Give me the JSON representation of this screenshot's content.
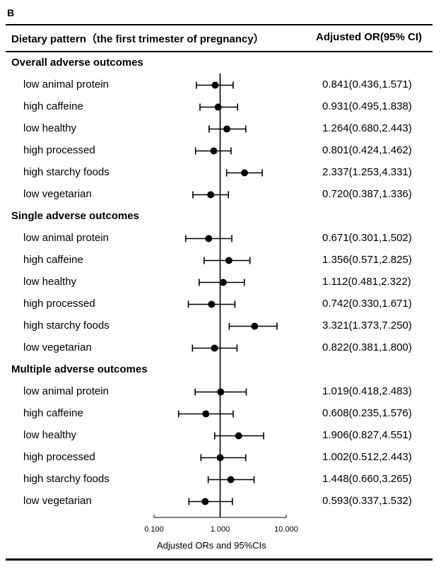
{
  "panel_label": "B",
  "header": {
    "left": "Dietary pattern（the first trimester of pregnancy）",
    "right": "Adjusted OR(95% CI)"
  },
  "chart_data": {
    "type": "forest",
    "x_scale": "log10",
    "xlim": [
      0.1,
      10
    ],
    "x_ticks": [
      0.1,
      1,
      10
    ],
    "x_tick_labels": [
      "0.100",
      "1.000",
      "10.000"
    ],
    "xlabel": "Adjusted ORs and 95%CIs",
    "reference_line": 1,
    "groups": [
      {
        "name": "Overall adverse outcomes",
        "rows": [
          {
            "label": "low animal protein",
            "or": 0.841,
            "lo": 0.436,
            "hi": 1.571,
            "text": "0.841(0.436,1.571)"
          },
          {
            "label": "high caffeine",
            "or": 0.931,
            "lo": 0.495,
            "hi": 1.838,
            "text": "0.931(0.495,1.838)"
          },
          {
            "label": "low healthy",
            "or": 1.264,
            "lo": 0.68,
            "hi": 2.443,
            "text": "1.264(0.680,2.443)"
          },
          {
            "label": "high processed",
            "or": 0.801,
            "lo": 0.424,
            "hi": 1.462,
            "text": "0.801(0.424,1.462)"
          },
          {
            "label": "high starchy foods",
            "or": 2.337,
            "lo": 1.253,
            "hi": 4.331,
            "text": "2.337(1.253,4.331)"
          },
          {
            "label": "low vegetarian",
            "or": 0.72,
            "lo": 0.387,
            "hi": 1.336,
            "text": "0.720(0.387,1.336)"
          }
        ]
      },
      {
        "name": "Single adverse outcomes",
        "rows": [
          {
            "label": "low animal protein",
            "or": 0.671,
            "lo": 0.301,
            "hi": 1.502,
            "text": "0.671(0.301,1.502)"
          },
          {
            "label": "high caffeine",
            "or": 1.356,
            "lo": 0.571,
            "hi": 2.825,
            "text": "1.356(0.571,2.825)"
          },
          {
            "label": "low healthy",
            "or": 1.112,
            "lo": 0.481,
            "hi": 2.322,
            "text": "1.112(0.481,2.322)"
          },
          {
            "label": "high processed",
            "or": 0.742,
            "lo": 0.33,
            "hi": 1.671,
            "text": "0.742(0.330,1.671)"
          },
          {
            "label": "high starchy foods",
            "or": 3.321,
            "lo": 1.373,
            "hi": 7.25,
            "text": "3.321(1.373,7.250)"
          },
          {
            "label": "low vegetarian",
            "or": 0.822,
            "lo": 0.381,
            "hi": 1.8,
            "text": "0.822(0.381,1.800)"
          }
        ]
      },
      {
        "name": "Multiple adverse outcomes",
        "rows": [
          {
            "label": "low animal protein",
            "or": 1.019,
            "lo": 0.418,
            "hi": 2.483,
            "text": "1.019(0.418,2.483)"
          },
          {
            "label": "high caffeine",
            "or": 0.608,
            "lo": 0.235,
            "hi": 1.576,
            "text": "0.608(0.235,1.576)"
          },
          {
            "label": "low healthy",
            "or": 1.906,
            "lo": 0.827,
            "hi": 4.551,
            "text": "1.906(0.827,4.551)"
          },
          {
            "label": "high processed",
            "or": 1.002,
            "lo": 0.512,
            "hi": 2.443,
            "text": "1.002(0.512,2.443)"
          },
          {
            "label": "high starchy foods",
            "or": 1.448,
            "lo": 0.66,
            "hi": 3.265,
            "text": "1.448(0.660,3.265)"
          },
          {
            "label": "low vegetarian",
            "or": 0.593,
            "lo": 0.337,
            "hi": 1.532,
            "text": "0.593(0.337,1.532)"
          }
        ]
      }
    ]
  }
}
